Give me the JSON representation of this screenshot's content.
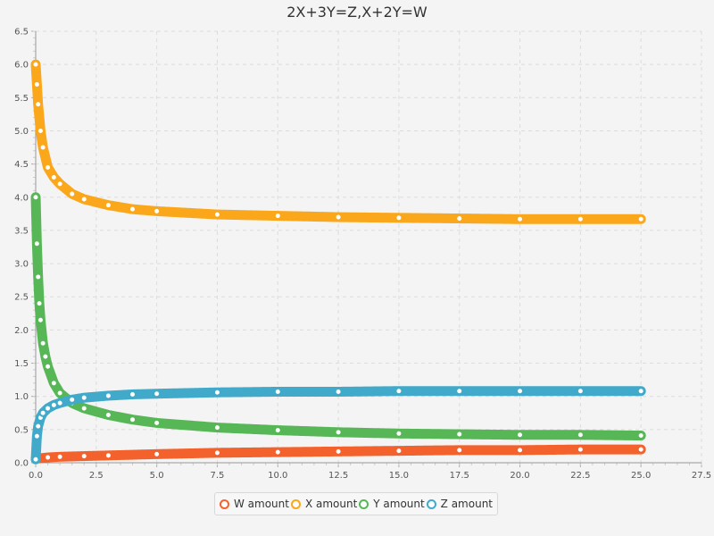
{
  "chart_data": {
    "type": "scatter",
    "title": "2X+3Y=Z,X+2Y=W",
    "xlim": [
      0,
      27.5
    ],
    "ylim": [
      0,
      6.5
    ],
    "x_ticks": [
      "0.0",
      "2.5",
      "5.0",
      "7.5",
      "10.0",
      "12.5",
      "15.0",
      "17.5",
      "20.0",
      "22.5",
      "25.0",
      "27.5"
    ],
    "y_ticks": [
      "0.0",
      "0.5",
      "1.0",
      "1.5",
      "2.0",
      "2.5",
      "3.0",
      "3.5",
      "4.0",
      "4.5",
      "5.0",
      "5.5",
      "6.0",
      "6.5"
    ],
    "grid": true,
    "legend_position": "bottom",
    "series": [
      {
        "name": "W amount",
        "color": "#f3622d",
        "x": [
          0,
          0.5,
          1,
          2,
          3,
          5,
          7.5,
          10,
          12.5,
          15,
          17.5,
          20,
          22.5,
          25
        ],
        "y": [
          0.06,
          0.08,
          0.09,
          0.1,
          0.11,
          0.13,
          0.15,
          0.16,
          0.17,
          0.18,
          0.19,
          0.19,
          0.2,
          0.2
        ]
      },
      {
        "name": "X amount",
        "color": "#fba71b",
        "x": [
          0,
          0.05,
          0.1,
          0.2,
          0.3,
          0.5,
          0.75,
          1,
          1.5,
          2,
          3,
          4,
          5,
          7.5,
          10,
          12.5,
          15,
          17.5,
          20,
          22.5,
          25
        ],
        "y": [
          6.0,
          5.7,
          5.4,
          5.0,
          4.75,
          4.45,
          4.3,
          4.2,
          4.05,
          3.97,
          3.88,
          3.82,
          3.79,
          3.74,
          3.72,
          3.7,
          3.69,
          3.68,
          3.67,
          3.67,
          3.67
        ]
      },
      {
        "name": "Y amount",
        "color": "#57b757",
        "x": [
          0,
          0.05,
          0.1,
          0.15,
          0.2,
          0.3,
          0.4,
          0.5,
          0.75,
          1,
          1.5,
          2,
          3,
          4,
          5,
          7.5,
          10,
          12.5,
          15,
          17.5,
          20,
          22.5,
          25
        ],
        "y": [
          4.0,
          3.3,
          2.8,
          2.4,
          2.15,
          1.8,
          1.6,
          1.45,
          1.2,
          1.05,
          0.9,
          0.82,
          0.72,
          0.65,
          0.6,
          0.53,
          0.49,
          0.46,
          0.44,
          0.43,
          0.42,
          0.42,
          0.41
        ]
      },
      {
        "name": "Z amount",
        "color": "#41a9c9",
        "x": [
          0,
          0.05,
          0.1,
          0.2,
          0.3,
          0.5,
          0.75,
          1,
          1.5,
          2,
          3,
          4,
          5,
          7.5,
          10,
          12.5,
          15,
          17.5,
          20,
          22.5,
          25
        ],
        "y": [
          0.05,
          0.4,
          0.55,
          0.68,
          0.75,
          0.82,
          0.87,
          0.9,
          0.95,
          0.98,
          1.01,
          1.03,
          1.04,
          1.06,
          1.07,
          1.07,
          1.08,
          1.08,
          1.08,
          1.08,
          1.08
        ]
      }
    ]
  }
}
